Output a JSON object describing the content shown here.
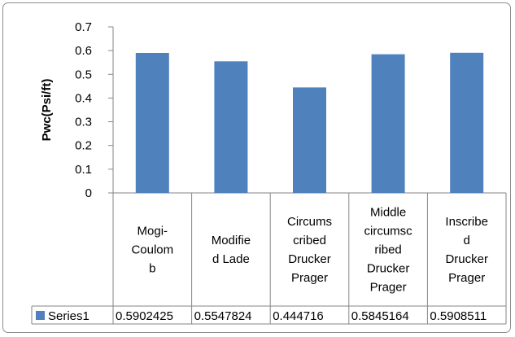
{
  "chart_data": {
    "type": "bar",
    "categories": [
      "Mogi-Coulomb",
      "Modified Lade",
      "Circumscribed Drucker Prager",
      "Middle circumscribed Drucker Prager",
      "Inscribed Drucker Prager"
    ],
    "category_lines": [
      [
        "Mogi-",
        "Coulom",
        "b"
      ],
      [
        "Modifie",
        "d Lade"
      ],
      [
        "Circums",
        "cribed",
        "Drucker",
        "Prager"
      ],
      [
        "Middle",
        "circumsc",
        "ribed",
        "Drucker",
        "Prager"
      ],
      [
        "Inscribe",
        "d",
        "Drucker",
        "Prager"
      ]
    ],
    "series": [
      {
        "name": "Series1",
        "values": [
          0.5902425,
          0.5547824,
          0.444716,
          0.5845164,
          0.5908511
        ],
        "value_labels": [
          "0.5902425",
          "0.5547824",
          "0.444716",
          "0.5845164",
          "0.5908511"
        ],
        "color": "#4f81bd"
      }
    ],
    "title": "",
    "xlabel": "",
    "ylabel": "Pwc(Psi/ft)",
    "ylim": [
      0,
      0.7
    ],
    "yticks": [
      "0",
      "0.1",
      "0.2",
      "0.3",
      "0.4",
      "0.5",
      "0.6",
      "0.7"
    ],
    "grid": false,
    "legend": "data-table-left"
  }
}
